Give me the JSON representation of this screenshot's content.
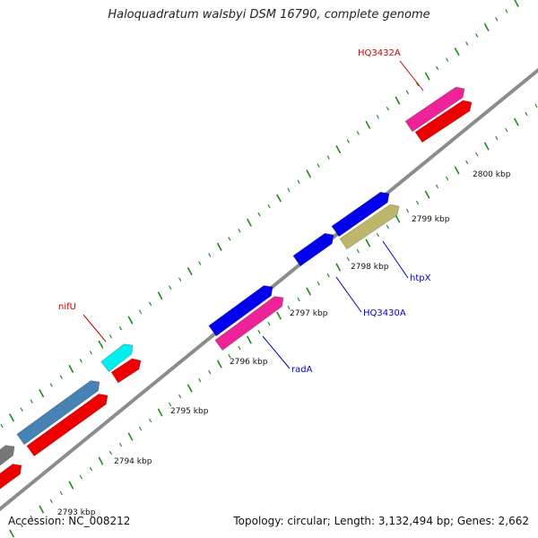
{
  "title": "Haloquadratum walsbyi DSM 16790, complete genome",
  "footer": {
    "accession": "Accession: NC_008212",
    "summary": "Topology: circular; Length: 3,132,494 bp; Genes: 2,662"
  },
  "ticks": [
    {
      "label": "2793 kbp"
    },
    {
      "label": "2794 kbp"
    },
    {
      "label": "2795 kbp"
    },
    {
      "label": "2796 kbp"
    },
    {
      "label": "2797 kbp"
    },
    {
      "label": "2798 kbp"
    },
    {
      "label": "2799 kbp"
    },
    {
      "label": "2800 kbp"
    }
  ],
  "gene_labels": [
    {
      "text": "HQ3432A",
      "color": "#cc0000"
    },
    {
      "text": "nifU",
      "color": "#cc0000"
    },
    {
      "text": "radA",
      "color": "#0000cc"
    },
    {
      "text": "HQ3430A",
      "color": "#0000cc"
    },
    {
      "text": "htpX",
      "color": "#0000cc"
    }
  ],
  "colors": {
    "backbone": "#8c8c8c",
    "tick_marks": "#1a8a1a",
    "pink": "#ee2299",
    "red": "#ee0000",
    "blue": "#0000ee",
    "cyan": "#00eeee",
    "steelblue": "#4682b4",
    "khaki": "#bdb76b",
    "gray": "#777777"
  }
}
